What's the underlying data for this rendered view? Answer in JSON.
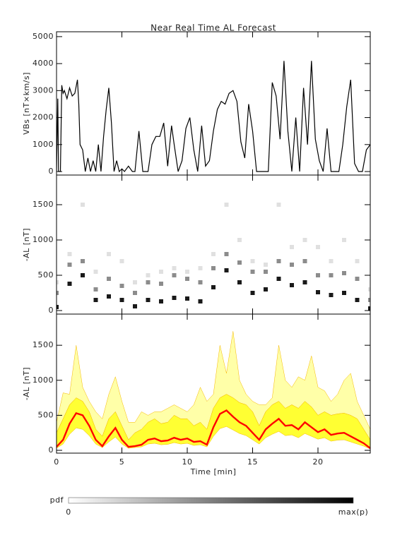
{
  "chart_data": [
    {
      "type": "line",
      "title": "Near Real Time AL Forecast",
      "ylabel": "VBs [nT×km/s]",
      "color": "#000000",
      "xlim": [
        0,
        24
      ],
      "xticks": [
        0,
        5,
        10,
        15,
        20
      ],
      "ylim": [
        -130,
        5180
      ],
      "yticks": [
        0,
        1000,
        2000,
        3000,
        4000,
        5000
      ],
      "x": [
        0,
        0.1,
        0.15,
        0.3,
        0.4,
        0.5,
        0.6,
        0.8,
        1.0,
        1.2,
        1.4,
        1.6,
        1.7,
        1.8,
        2.0,
        2.2,
        2.4,
        2.6,
        2.8,
        3.0,
        3.2,
        3.4,
        3.6,
        3.8,
        4.0,
        4.2,
        4.4,
        4.6,
        4.8,
        5.0,
        5.2,
        5.5,
        5.8,
        6.0,
        6.3,
        6.6,
        7.0,
        7.3,
        7.6,
        7.9,
        8.2,
        8.5,
        8.8,
        9.0,
        9.3,
        9.6,
        9.9,
        10.2,
        10.5,
        10.8,
        11.1,
        11.4,
        11.7,
        12.0,
        12.3,
        12.6,
        12.9,
        13.2,
        13.5,
        13.8,
        14.1,
        14.4,
        14.7,
        15.0,
        15.3,
        15.6,
        15.9,
        16.2,
        16.5,
        16.8,
        17.1,
        17.4,
        17.7,
        18.0,
        18.3,
        18.6,
        18.9,
        19.2,
        19.5,
        19.8,
        20.1,
        20.4,
        20.7,
        21.0,
        21.3,
        21.6,
        21.9,
        22.2,
        22.5,
        22.8,
        23.1,
        23.4,
        23.7,
        24.0
      ],
      "values": [
        0,
        2700,
        0,
        0,
        3200,
        2900,
        3000,
        2700,
        3100,
        2800,
        2900,
        3400,
        2500,
        1000,
        800,
        0,
        500,
        0,
        400,
        0,
        1000,
        0,
        1300,
        2300,
        3100,
        1800,
        0,
        400,
        0,
        100,
        0,
        200,
        0,
        0,
        1500,
        0,
        0,
        1000,
        1300,
        1300,
        1800,
        200,
        1700,
        1000,
        0,
        400,
        1600,
        2000,
        800,
        0,
        1700,
        200,
        400,
        1500,
        2300,
        2600,
        2500,
        2900,
        3000,
        2600,
        1100,
        500,
        2500,
        1500,
        0,
        0,
        0,
        0,
        3300,
        2800,
        1200,
        4100,
        1500,
        0,
        2000,
        0,
        3100,
        1000,
        4100,
        1200,
        400,
        0,
        1600,
        0,
        0,
        0,
        1000,
        2400,
        3400,
        300,
        0,
        0,
        800,
        1000
      ]
    },
    {
      "type": "heatmap",
      "ylabel": "-AL [nT]",
      "xlim": [
        0,
        24
      ],
      "xticks": [
        0,
        5,
        10,
        15,
        20
      ],
      "ylim": [
        -50,
        1920
      ],
      "yticks": [
        0,
        500,
        1000,
        1500
      ],
      "cells": [
        [
          0,
          50,
          0.9
        ],
        [
          0,
          250,
          0.45
        ],
        [
          0,
          400,
          0.12
        ],
        [
          1,
          380,
          0.9
        ],
        [
          1,
          650,
          0.45
        ],
        [
          1,
          800,
          0.12
        ],
        [
          2,
          500,
          0.9
        ],
        [
          2,
          700,
          0.45
        ],
        [
          2,
          1500,
          0.12
        ],
        [
          3,
          150,
          0.9
        ],
        [
          3,
          300,
          0.45
        ],
        [
          3,
          550,
          0.12
        ],
        [
          4,
          200,
          0.9
        ],
        [
          4,
          450,
          0.45
        ],
        [
          4,
          800,
          0.12
        ],
        [
          5,
          150,
          0.9
        ],
        [
          5,
          350,
          0.45
        ],
        [
          5,
          700,
          0.12
        ],
        [
          6,
          60,
          0.9
        ],
        [
          6,
          250,
          0.45
        ],
        [
          6,
          400,
          0.12
        ],
        [
          7,
          150,
          0.9
        ],
        [
          7,
          400,
          0.45
        ],
        [
          7,
          500,
          0.12
        ],
        [
          8,
          130,
          0.9
        ],
        [
          8,
          380,
          0.45
        ],
        [
          8,
          550,
          0.12
        ],
        [
          9,
          180,
          0.9
        ],
        [
          9,
          500,
          0.45
        ],
        [
          9,
          600,
          0.12
        ],
        [
          10,
          170,
          0.9
        ],
        [
          10,
          450,
          0.45
        ],
        [
          10,
          550,
          0.12
        ],
        [
          11,
          130,
          0.9
        ],
        [
          11,
          400,
          0.45
        ],
        [
          11,
          600,
          0.12
        ],
        [
          12,
          330,
          0.9
        ],
        [
          12,
          600,
          0.45
        ],
        [
          12,
          800,
          0.12
        ],
        [
          13,
          570,
          0.9
        ],
        [
          13,
          800,
          0.45
        ],
        [
          13,
          1500,
          0.12
        ],
        [
          14,
          400,
          0.9
        ],
        [
          14,
          680,
          0.45
        ],
        [
          14,
          1000,
          0.12
        ],
        [
          15,
          250,
          0.9
        ],
        [
          15,
          550,
          0.45
        ],
        [
          15,
          700,
          0.12
        ],
        [
          16,
          300,
          0.9
        ],
        [
          16,
          550,
          0.45
        ],
        [
          16,
          650,
          0.12
        ],
        [
          17,
          450,
          0.9
        ],
        [
          17,
          700,
          0.45
        ],
        [
          17,
          1500,
          0.12
        ],
        [
          18,
          360,
          0.9
        ],
        [
          18,
          650,
          0.45
        ],
        [
          18,
          900,
          0.12
        ],
        [
          19,
          400,
          0.9
        ],
        [
          19,
          700,
          0.45
        ],
        [
          19,
          1000,
          0.12
        ],
        [
          20,
          260,
          0.9
        ],
        [
          20,
          500,
          0.45
        ],
        [
          20,
          900,
          0.12
        ],
        [
          21,
          220,
          0.9
        ],
        [
          21,
          500,
          0.45
        ],
        [
          21,
          700,
          0.12
        ],
        [
          22,
          250,
          0.9
        ],
        [
          22,
          530,
          0.45
        ],
        [
          22,
          1000,
          0.12
        ],
        [
          23,
          150,
          0.9
        ],
        [
          23,
          450,
          0.45
        ],
        [
          23,
          700,
          0.12
        ],
        [
          24,
          30,
          0.9
        ],
        [
          24,
          150,
          0.45
        ],
        [
          24,
          300,
          0.12
        ]
      ]
    },
    {
      "type": "band",
      "ylabel": "-AL [nT]",
      "xlabel": "Time [min]",
      "xlim": [
        0,
        24
      ],
      "xticks": [
        0,
        5,
        10,
        15,
        20
      ],
      "ylim": [
        -40,
        1945
      ],
      "yticks": [
        0,
        500,
        1000,
        1500
      ],
      "x": [
        0,
        0.5,
        1,
        1.5,
        2,
        2.5,
        3,
        3.5,
        4,
        4.5,
        5,
        5.5,
        6,
        6.5,
        7,
        7.5,
        8,
        8.5,
        9,
        9.5,
        10,
        10.5,
        11,
        11.5,
        12,
        12.5,
        13,
        13.5,
        14,
        14.5,
        15,
        15.5,
        16,
        16.5,
        17,
        17.5,
        18,
        18.5,
        19,
        19.5,
        20,
        20.5,
        21,
        21.5,
        22,
        22.5,
        23,
        23.5,
        24
      ],
      "outer": {
        "color": "#ffffa8",
        "upper": [
          400,
          820,
          800,
          1500,
          900,
          700,
          550,
          450,
          800,
          1050,
          700,
          400,
          400,
          550,
          500,
          550,
          550,
          600,
          650,
          600,
          550,
          650,
          900,
          700,
          800,
          1500,
          1100,
          1700,
          1000,
          800,
          700,
          650,
          650,
          750,
          1500,
          1000,
          900,
          1050,
          1000,
          1350,
          900,
          850,
          700,
          800,
          1000,
          1100,
          700,
          500,
          300
        ]
      },
      "band": {
        "color": "#ffff33",
        "upper": [
          250,
          450,
          650,
          750,
          700,
          550,
          300,
          200,
          450,
          550,
          350,
          150,
          250,
          300,
          400,
          450,
          380,
          400,
          500,
          450,
          450,
          350,
          400,
          300,
          600,
          750,
          800,
          750,
          680,
          650,
          550,
          350,
          550,
          650,
          700,
          600,
          650,
          600,
          700,
          620,
          500,
          550,
          500,
          520,
          530,
          500,
          450,
          300,
          150
        ],
        "lower": [
          30,
          90,
          230,
          320,
          300,
          210,
          90,
          40,
          120,
          190,
          90,
          30,
          40,
          50,
          90,
          100,
          80,
          85,
          110,
          90,
          100,
          70,
          80,
          50,
          200,
          310,
          340,
          290,
          240,
          210,
          150,
          90,
          180,
          230,
          270,
          210,
          220,
          180,
          240,
          200,
          160,
          180,
          130,
          145,
          150,
          120,
          90,
          60,
          20
        ]
      },
      "median": {
        "color": "#ff0000",
        "values": [
          50,
          150,
          380,
          530,
          500,
          350,
          150,
          60,
          200,
          320,
          150,
          50,
          60,
          80,
          150,
          170,
          130,
          140,
          180,
          150,
          170,
          120,
          130,
          80,
          330,
          520,
          570,
          480,
          400,
          350,
          250,
          150,
          300,
          380,
          450,
          350,
          360,
          300,
          400,
          330,
          260,
          300,
          220,
          240,
          250,
          200,
          150,
          100,
          30
        ]
      }
    }
  ],
  "colorbar": {
    "label": "pdf",
    "min_label": "0",
    "max_label": "max(p)"
  }
}
